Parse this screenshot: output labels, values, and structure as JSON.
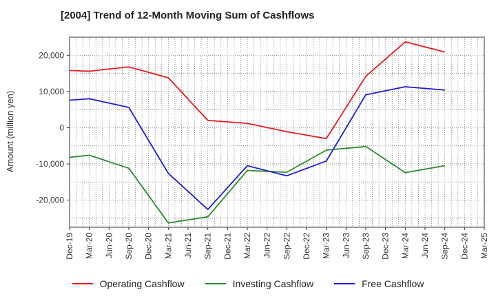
{
  "chart_data": {
    "type": "line",
    "title": "[2004]  Trend of 12-Month Moving Sum of Cashflows",
    "xlabel": "",
    "ylabel": "Amount (million yen)",
    "categories": [
      "Dec-19",
      "Mar-20",
      "Jun-20",
      "Sep-20",
      "Dec-20",
      "Mar-21",
      "Jun-21",
      "Sep-21",
      "Dec-21",
      "Mar-22",
      "Jun-22",
      "Sep-22",
      "Dec-22",
      "Mar-23",
      "Jun-23",
      "Sep-23",
      "Dec-23",
      "Mar-24",
      "Jun-24",
      "Sep-24",
      "Dec-24",
      "Mar-25"
    ],
    "ylim": [
      -27500,
      25000
    ],
    "yticks": [
      -20000,
      -10000,
      0,
      10000,
      20000
    ],
    "ytick_labels": [
      "-20,000",
      "-10,000",
      "0",
      "10,000",
      "20,000"
    ],
    "grid": true,
    "legend_position": "bottom",
    "series": [
      {
        "name": "Operating Cashflow",
        "color": "#e8191e",
        "x": [
          "Dec-19",
          "Mar-20",
          "Sep-20",
          "Mar-21",
          "Sep-21",
          "Mar-22",
          "Sep-22",
          "Mar-23",
          "Sep-23",
          "Mar-24",
          "Sep-24"
        ],
        "values": [
          15800,
          15600,
          16800,
          13800,
          2000,
          1200,
          -1100,
          -3000,
          14200,
          23700,
          20900
        ]
      },
      {
        "name": "Investing Cashflow",
        "color": "#2a8a2a",
        "x": [
          "Dec-19",
          "Mar-20",
          "Sep-20",
          "Mar-21",
          "Sep-21",
          "Mar-22",
          "Sep-22",
          "Mar-23",
          "Sep-23",
          "Mar-24",
          "Sep-24"
        ],
        "values": [
          -8200,
          -7600,
          -11200,
          -26300,
          -24600,
          -11800,
          -12300,
          -6200,
          -5200,
          -12400,
          -10500
        ]
      },
      {
        "name": "Free Cashflow",
        "color": "#1b1bd6",
        "x": [
          "Dec-19",
          "Mar-20",
          "Sep-20",
          "Mar-21",
          "Sep-21",
          "Mar-22",
          "Sep-22",
          "Mar-23",
          "Sep-23",
          "Mar-24",
          "Sep-24"
        ],
        "values": [
          7600,
          8000,
          5600,
          -12600,
          -22600,
          -10500,
          -13300,
          -9200,
          9100,
          11300,
          10400
        ]
      }
    ]
  }
}
